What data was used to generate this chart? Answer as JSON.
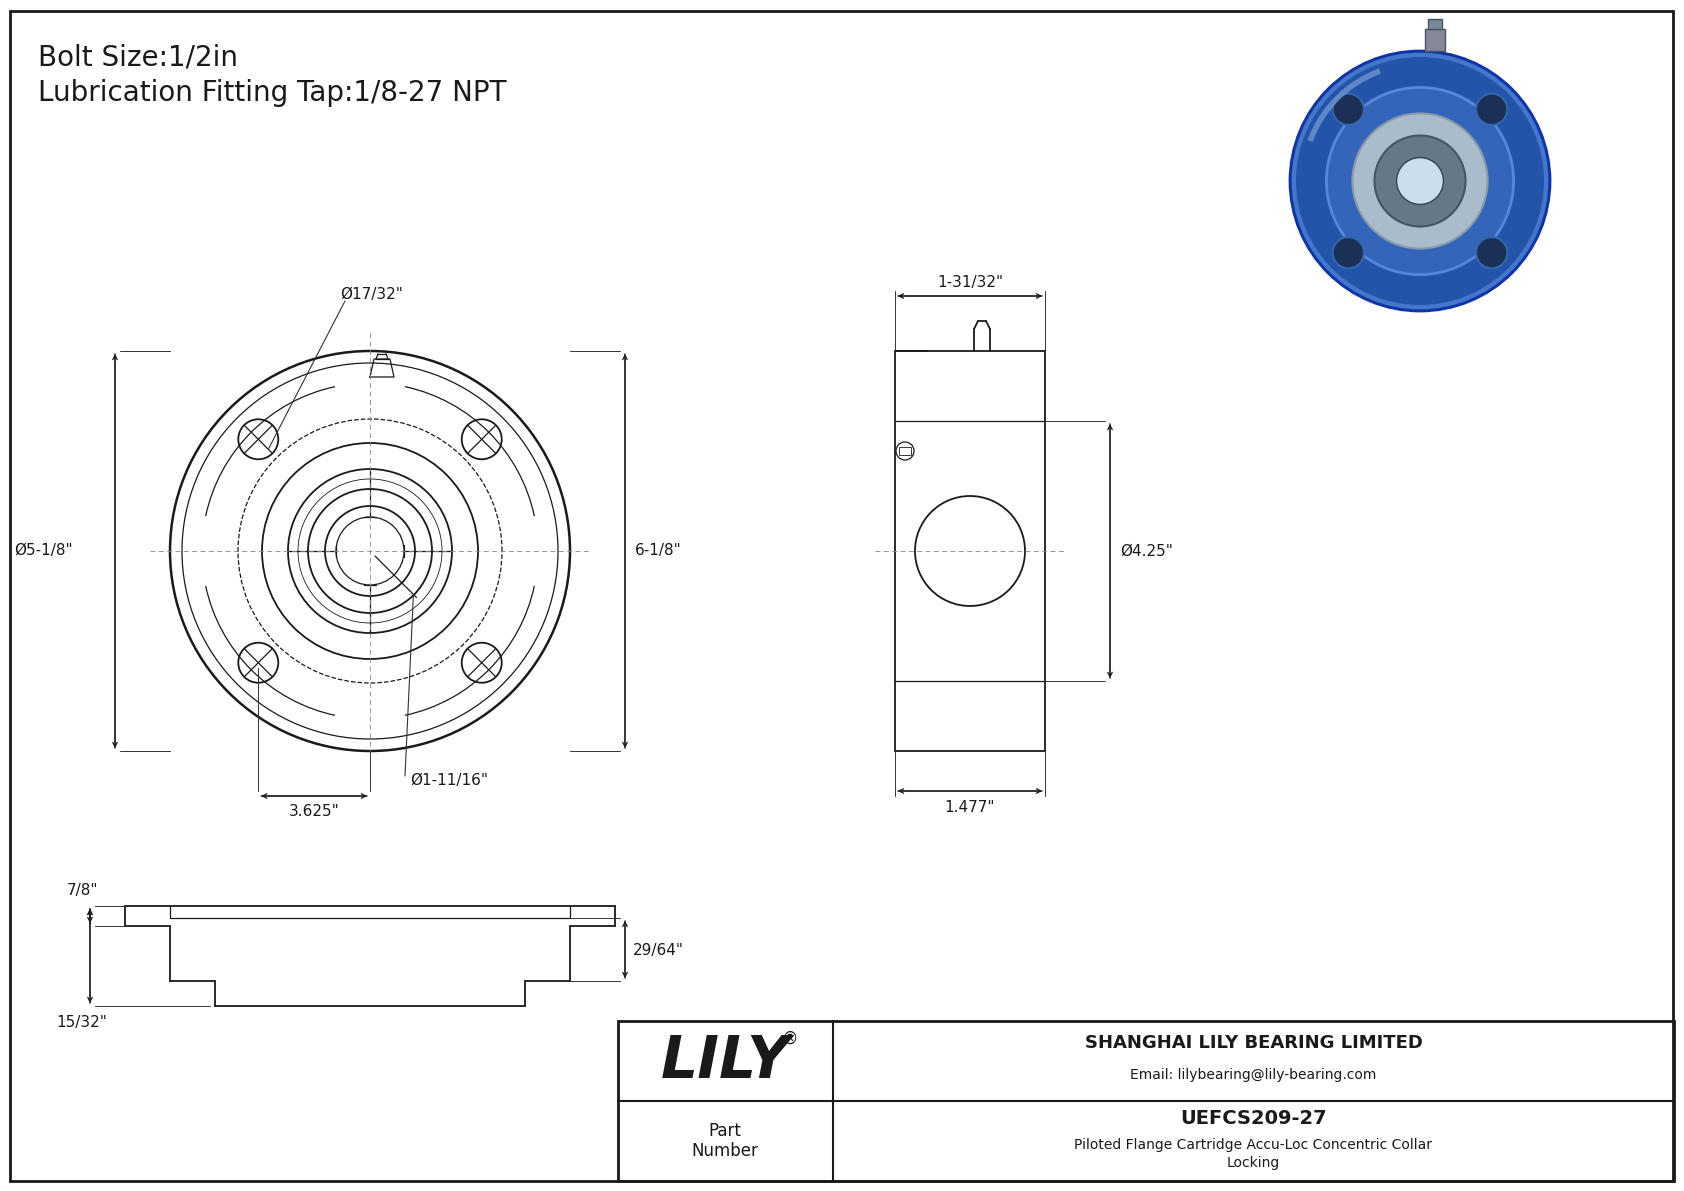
{
  "bg_color": "#ffffff",
  "line_color": "#1a1a1a",
  "dim_color": "#1a1a1a",
  "title_line1": "Bolt Size:1/2in",
  "title_line2": "Lubrication Fitting Tap:1/8-27 NPT",
  "title_fontsize": 20,
  "company_name": "SHANGHAI LILY BEARING LIMITED",
  "company_email": "Email: lilybearing@lily-bearing.com",
  "part_number": "UEFCS209-27",
  "part_desc1": "Piloted Flange Cartridge Accu-Loc Concentric Collar",
  "part_desc2": "Locking",
  "lily_text": "LILY",
  "dim_bolt_hole": "Ø17/32\"",
  "dim_flange_od": "Ø5-1/8\"",
  "dim_height": "6-1/8\"",
  "dim_bolt_circle": "3.625\"",
  "dim_bore": "Ø1-11/16\"",
  "dim_width": "1-31/32\"",
  "dim_pilot_od": "Ø4.25\"",
  "dim_depth": "1.477\"",
  "dim_side_h1": "7/8\"",
  "dim_side_h2": "29/64\"",
  "dim_side_h3": "15/32\""
}
